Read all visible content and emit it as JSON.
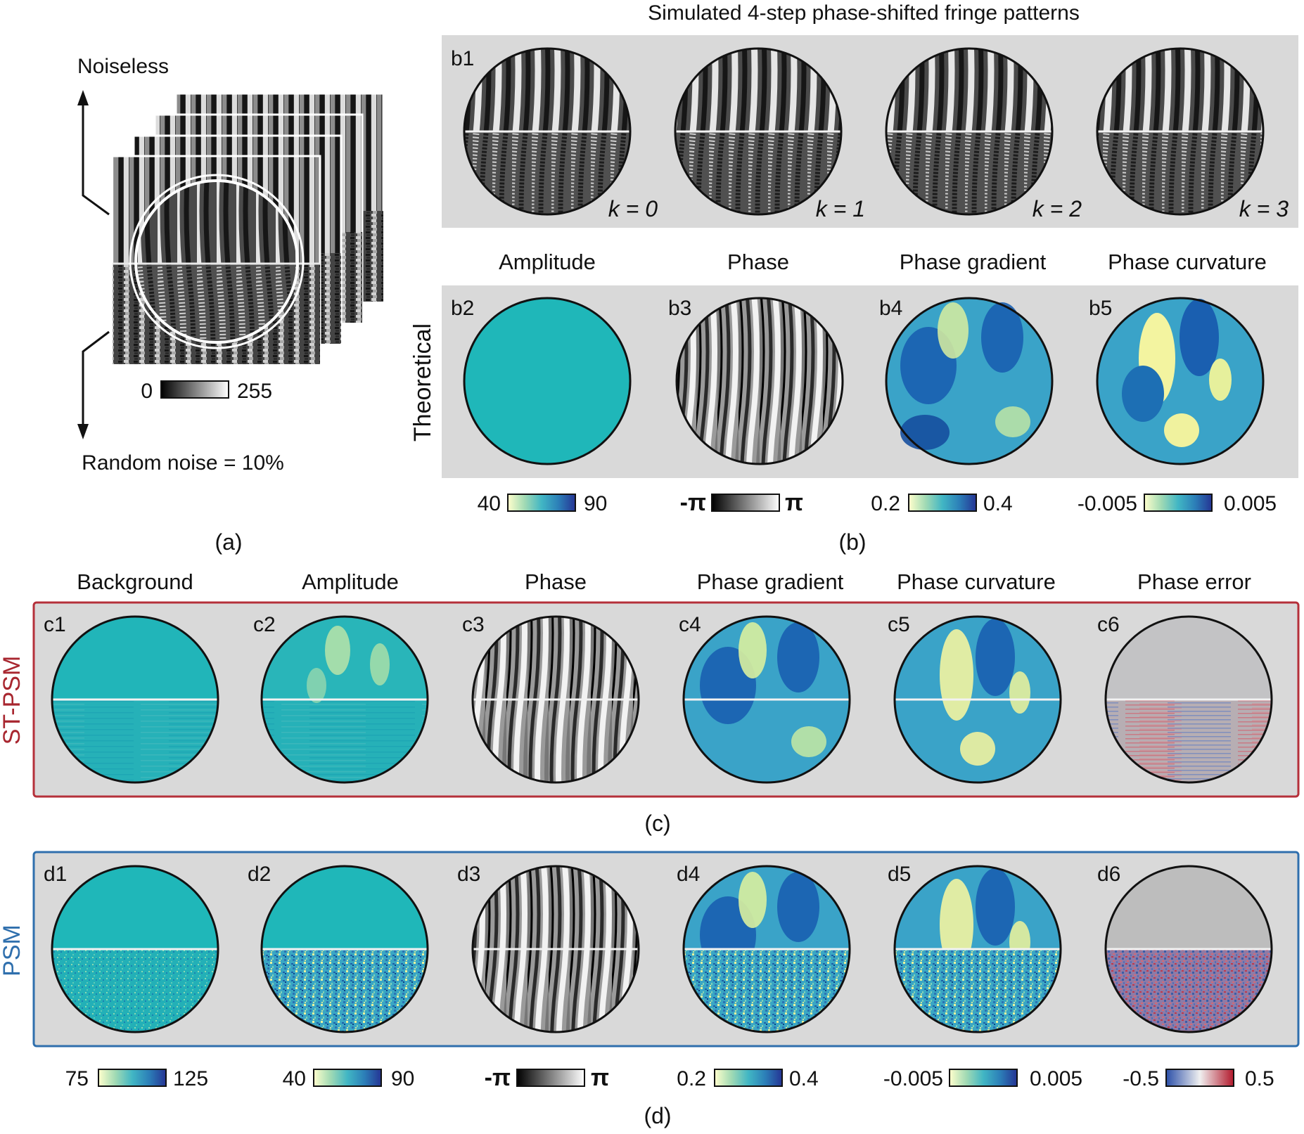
{
  "panel_a": {
    "label_top": "Noiseless",
    "label_bottom": "Random noise = 10%",
    "cbar_min": "0",
    "cbar_max": "255",
    "caption": "(a)"
  },
  "panel_b": {
    "title": "Simulated 4-step phase-shifted fringe patterns",
    "row1_ids": [
      "b1"
    ],
    "k_labels": [
      "k = 0",
      "k = 1",
      "k = 2",
      "k = 3"
    ],
    "col_titles": [
      "Amplitude",
      "Phase",
      "Phase gradient",
      "Phase curvature"
    ],
    "row_label": "Theoretical",
    "ids": [
      "b2",
      "b3",
      "b4",
      "b5"
    ],
    "cbars": [
      {
        "min": "40",
        "max": "90",
        "type": "ygb"
      },
      {
        "min": "-π",
        "max": "π",
        "type": "gray"
      },
      {
        "min": "0.2",
        "max": "0.4",
        "type": "ygb"
      },
      {
        "min": "-0.005",
        "max": "0.005",
        "type": "ygb"
      }
    ],
    "caption": "(b)"
  },
  "panel_c": {
    "col_titles": [
      "Background",
      "Amplitude",
      "Phase",
      "Phase gradient",
      "Phase curvature",
      "Phase error"
    ],
    "row_label": "ST-PSM",
    "ids": [
      "c1",
      "c2",
      "c3",
      "c4",
      "c5",
      "c6"
    ],
    "caption": "(c)",
    "border_color": "#b5303a",
    "label_color": "#a8262f"
  },
  "panel_d": {
    "row_label": "PSM",
    "ids": [
      "d1",
      "d2",
      "d3",
      "d4",
      "d5",
      "d6"
    ],
    "cbars": [
      {
        "min": "75",
        "max": "125",
        "type": "ygb"
      },
      {
        "min": "40",
        "max": "90",
        "type": "ygb"
      },
      {
        "min": "-π",
        "max": "π",
        "type": "gray"
      },
      {
        "min": "0.2",
        "max": "0.4",
        "type": "ygb"
      },
      {
        "min": "-0.005",
        "max": "0.005",
        "type": "ygb"
      },
      {
        "min": "-0.5",
        "max": "0.5",
        "type": "rdbu"
      }
    ],
    "caption": "(d)",
    "border_color": "#2f6fad",
    "label_color": "#2f6fad"
  },
  "colors": {
    "panel_bg": "#d9d9d9",
    "teal": "#1fb7b9",
    "deep_blue": "#1557a8",
    "yellow": "#f3f4a0",
    "error_gray": "#bdbdbd"
  }
}
